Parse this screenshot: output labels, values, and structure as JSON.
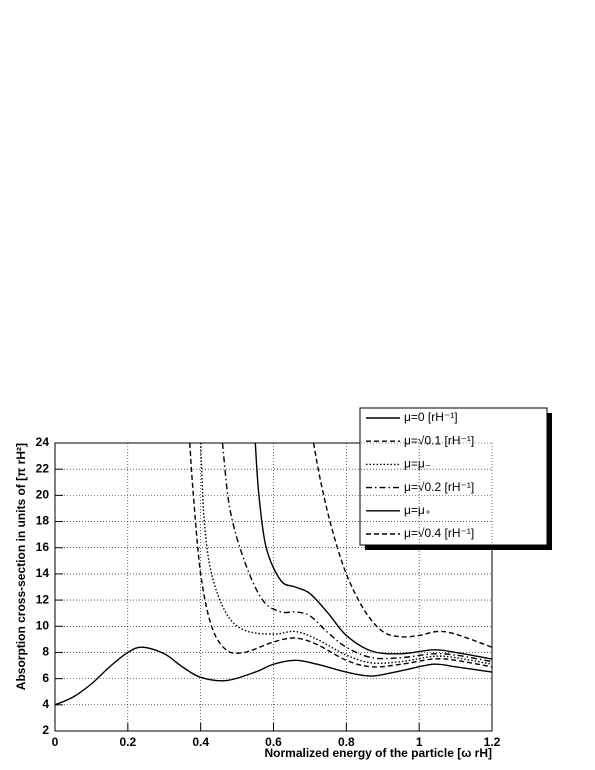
{
  "chart_data": {
    "type": "line",
    "xlabel": "Normalized energy of the particle [ω rH]",
    "ylabel": "Absorption cross-section in units of [π rH²]",
    "xlim": [
      0,
      1.2
    ],
    "ylim": [
      2,
      24
    ],
    "xticks": [
      0,
      0.2,
      0.4,
      0.6,
      0.8,
      1,
      1.2
    ],
    "yticks": [
      2,
      4,
      6,
      8,
      10,
      12,
      14,
      16,
      18,
      20,
      22,
      24
    ],
    "grid": true,
    "legend": "upper right",
    "series": [
      {
        "name": "μ=0 [rH⁻¹]",
        "color": "#000000",
        "dash": "solid",
        "x": [
          0,
          0.05,
          0.1,
          0.15,
          0.2,
          0.24,
          0.3,
          0.35,
          0.4,
          0.47,
          0.55,
          0.6,
          0.66,
          0.72,
          0.8,
          0.87,
          0.95,
          1.04,
          1.1,
          1.2
        ],
        "values": [
          4.0,
          4.6,
          5.6,
          6.9,
          8.0,
          8.4,
          7.9,
          6.9,
          6.1,
          5.85,
          6.5,
          7.1,
          7.4,
          7.1,
          6.5,
          6.2,
          6.6,
          7.1,
          6.9,
          6.5
        ]
      },
      {
        "name": "μ=√0.1 [rH⁻¹]",
        "color": "#000000",
        "dash": "dashed",
        "x": [
          0.37,
          0.38,
          0.4,
          0.43,
          0.47,
          0.52,
          0.6,
          0.66,
          0.72,
          0.8,
          0.87,
          0.95,
          1.04,
          1.1,
          1.2
        ],
        "values": [
          24,
          20,
          14,
          10,
          8.2,
          8.0,
          8.8,
          9.1,
          8.6,
          7.4,
          6.9,
          7.1,
          7.5,
          7.4,
          6.9
        ]
      },
      {
        "name": "μ=μ₋",
        "color": "#000000",
        "dash": "dotted",
        "x": [
          0.4,
          0.41,
          0.43,
          0.47,
          0.52,
          0.6,
          0.66,
          0.72,
          0.8,
          0.87,
          0.95,
          1.04,
          1.1,
          1.2
        ],
        "values": [
          24,
          18,
          14,
          11,
          9.7,
          9.4,
          9.6,
          9.0,
          7.8,
          7.2,
          7.3,
          7.7,
          7.6,
          7.1
        ]
      },
      {
        "name": "μ=√0.2 [rH⁻¹]",
        "color": "#000000",
        "dash": "dashdot",
        "x": [
          0.46,
          0.48,
          0.52,
          0.57,
          0.62,
          0.66,
          0.7,
          0.75,
          0.8,
          0.87,
          0.95,
          1.04,
          1.1,
          1.2
        ],
        "values": [
          24,
          19,
          15,
          12,
          11.1,
          11.1,
          10.8,
          9.5,
          8.4,
          7.6,
          7.6,
          7.9,
          7.8,
          7.3
        ]
      },
      {
        "name": "μ=μ₊",
        "color": "#000000",
        "dash": "solid",
        "x": [
          0.55,
          0.56,
          0.58,
          0.62,
          0.66,
          0.7,
          0.75,
          0.8,
          0.87,
          0.95,
          1.04,
          1.1,
          1.2
        ],
        "values": [
          24,
          20,
          16,
          13.5,
          13.0,
          12.5,
          11,
          9.3,
          8.1,
          7.9,
          8.2,
          8.0,
          7.5
        ]
      },
      {
        "name": "μ=√0.4 [rH⁻¹]",
        "color": "#000000",
        "dash": "dashed",
        "x": [
          0.71,
          0.73,
          0.76,
          0.8,
          0.85,
          0.9,
          0.95,
          1.0,
          1.05,
          1.1,
          1.2
        ],
        "values": [
          24,
          21,
          17.5,
          14,
          11.2,
          9.6,
          9.2,
          9.3,
          9.6,
          9.4,
          8.4
        ]
      }
    ]
  }
}
